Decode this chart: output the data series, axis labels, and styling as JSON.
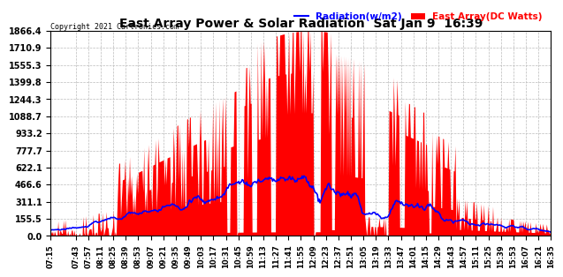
{
  "title": "East Array Power & Solar Radiation  Sat Jan 9  16:39",
  "copyright": "Copyright 2021 Cartronics.com",
  "legend_radiation": "Radiation(w/m2)",
  "legend_east": "East Array(DC Watts)",
  "legend_radiation_color": "blue",
  "legend_east_color": "red",
  "background_color": "#ffffff",
  "plot_bg_color": "#ffffff",
  "grid_color": "#bbbbbb",
  "yticks": [
    0.0,
    155.5,
    311.1,
    466.6,
    622.1,
    777.7,
    933.2,
    1088.7,
    1244.3,
    1399.8,
    1555.3,
    1710.9,
    1866.4
  ],
  "ymax": 1866.4,
  "ymin": 0.0,
  "fill_color": "red",
  "line_color": "blue",
  "line_width": 1.2,
  "time_labels": [
    "07:15",
    "07:43",
    "07:57",
    "08:11",
    "08:25",
    "08:39",
    "08:53",
    "09:07",
    "09:21",
    "09:35",
    "09:49",
    "10:03",
    "10:17",
    "10:31",
    "10:45",
    "10:59",
    "11:13",
    "11:27",
    "11:41",
    "11:55",
    "12:09",
    "12:23",
    "12:37",
    "12:51",
    "13:05",
    "13:19",
    "13:33",
    "13:47",
    "14:01",
    "14:15",
    "14:29",
    "14:43",
    "14:57",
    "15:11",
    "15:25",
    "15:39",
    "15:53",
    "16:07",
    "16:21",
    "16:35"
  ]
}
